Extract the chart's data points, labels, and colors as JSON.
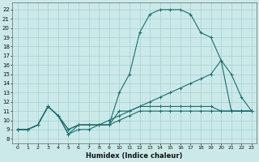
{
  "background_color": "#cce9e9",
  "grid_color": "#aad4d4",
  "line_color": "#1a6e6e",
  "xlabel": "Humidex (Indice chaleur)",
  "xlim": [
    -0.5,
    23.5
  ],
  "ylim": [
    7.5,
    22.8
  ],
  "xticks": [
    0,
    1,
    2,
    3,
    4,
    5,
    6,
    7,
    8,
    9,
    10,
    11,
    12,
    13,
    14,
    15,
    16,
    17,
    18,
    19,
    20,
    21,
    22,
    23
  ],
  "yticks": [
    8,
    9,
    10,
    11,
    12,
    13,
    14,
    15,
    16,
    17,
    18,
    19,
    20,
    21,
    22
  ],
  "series": [
    {
      "x": [
        0,
        1,
        2,
        3,
        4,
        5,
        6,
        7,
        8,
        9,
        10,
        11,
        12,
        13,
        14,
        15,
        16,
        17,
        18,
        19,
        20,
        21,
        22,
        23
      ],
      "y": [
        9,
        9,
        9.5,
        11.5,
        10.5,
        8.5,
        9,
        9,
        9.5,
        9.5,
        13,
        15,
        19.5,
        21.5,
        22,
        22,
        22,
        21.5,
        19.5,
        19,
        16.5,
        11,
        11,
        11
      ],
      "linestyle": "solid"
    },
    {
      "x": [
        0,
        1,
        2,
        3,
        4,
        5,
        6,
        7,
        8,
        9,
        10,
        11,
        12,
        13,
        14,
        15,
        16,
        17,
        18,
        19,
        20,
        21,
        22,
        23
      ],
      "y": [
        9,
        9,
        9.5,
        11.5,
        10.5,
        8.5,
        9.5,
        9.5,
        9.5,
        9.5,
        11,
        11,
        11.5,
        11.5,
        11.5,
        11.5,
        11.5,
        11.5,
        11.5,
        11.5,
        11,
        11,
        11,
        11
      ],
      "linestyle": "solid"
    },
    {
      "x": [
        0,
        1,
        2,
        3,
        4,
        5,
        6,
        7,
        8,
        9,
        10,
        11,
        12,
        13,
        14,
        15,
        16,
        17,
        18,
        19,
        20,
        21,
        22,
        23
      ],
      "y": [
        9,
        9,
        9.5,
        11.5,
        10.5,
        9,
        9.5,
        9.5,
        9.5,
        10,
        10.5,
        11,
        11.5,
        12,
        12.5,
        13,
        13.5,
        14,
        14.5,
        15,
        16.5,
        15,
        12.5,
        11
      ],
      "linestyle": "solid"
    },
    {
      "x": [
        0,
        1,
        2,
        3,
        4,
        5,
        6,
        7,
        8,
        9,
        10,
        11,
        12,
        13,
        14,
        15,
        16,
        17,
        18,
        19,
        20,
        21,
        22,
        23
      ],
      "y": [
        9,
        9,
        9.5,
        11.5,
        10.5,
        9,
        9.5,
        9.5,
        9.5,
        9.5,
        10,
        10.5,
        11,
        11,
        11,
        11,
        11,
        11,
        11,
        11,
        11,
        11,
        11,
        11
      ],
      "linestyle": "solid"
    }
  ]
}
